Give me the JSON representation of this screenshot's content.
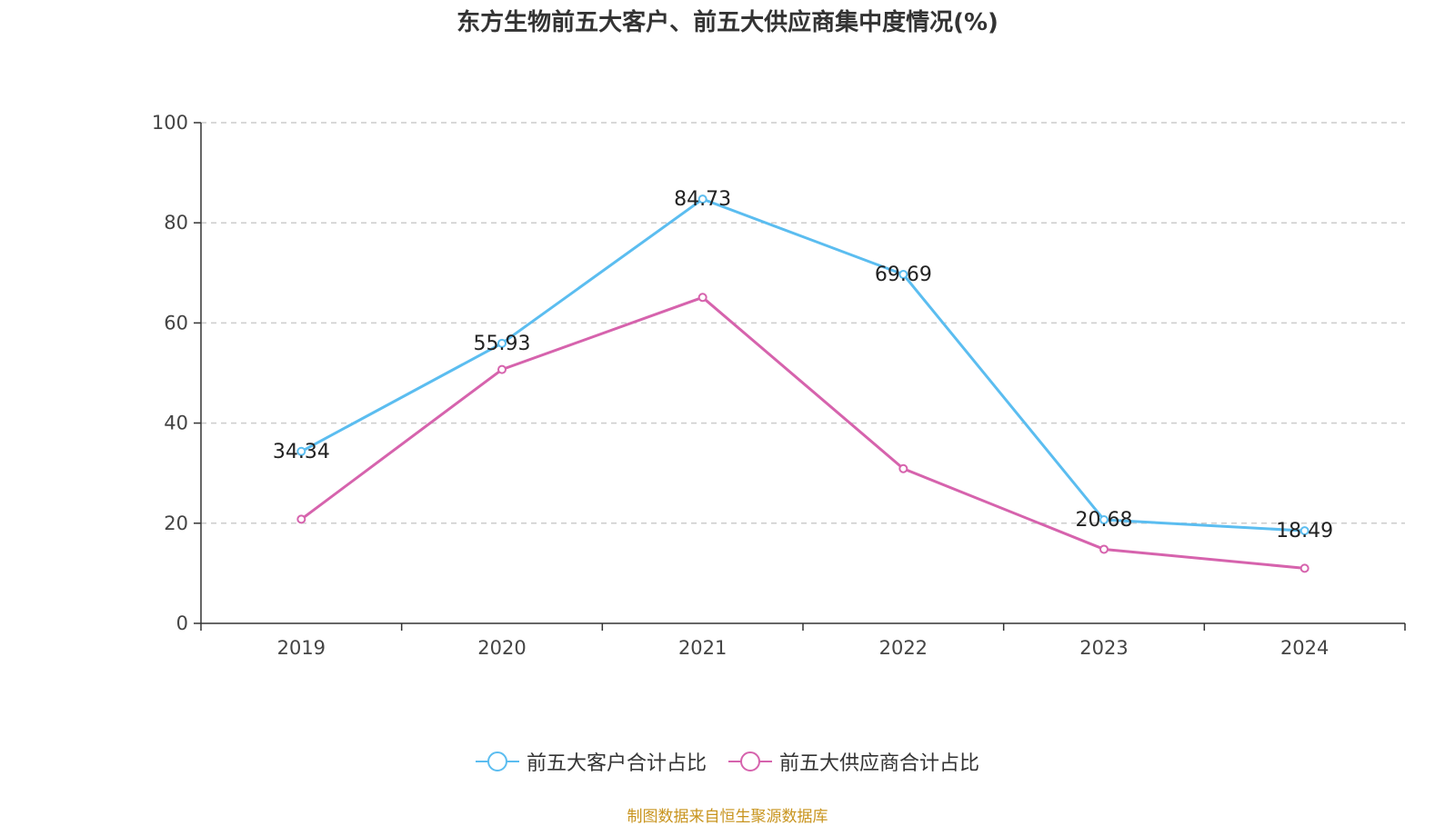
{
  "chart_data": {
    "type": "line",
    "title": "东方生物前五大客户、前五大供应商集中度情况(%)",
    "categories": [
      "2019",
      "2020",
      "2021",
      "2022",
      "2023",
      "2024"
    ],
    "ylim": [
      0,
      100
    ],
    "yticks": [
      0,
      20,
      40,
      60,
      80,
      100
    ],
    "grid": true,
    "legend_position": "bottom",
    "series": [
      {
        "name": "前五大客户合计占比",
        "color": "#5bbdf0",
        "values": [
          34.34,
          55.93,
          84.73,
          69.69,
          20.68,
          18.49
        ],
        "labels": [
          "34.34",
          "55.93",
          "84.73",
          "69.69",
          "20.68",
          "18.49"
        ]
      },
      {
        "name": "前五大供应商合计占比",
        "color": "#d663ad",
        "values": [
          20.8,
          50.7,
          65.1,
          30.9,
          14.8,
          11.0
        ]
      }
    ]
  },
  "source": "制图数据来自恒生聚源数据库"
}
